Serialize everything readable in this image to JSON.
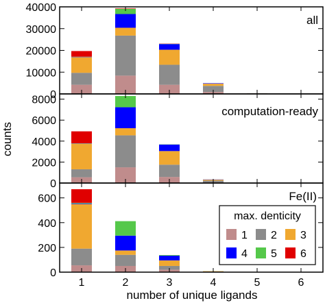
{
  "figure": {
    "ylabel": "counts",
    "xlabel": "number of unique ligands"
  },
  "colors": {
    "1": "#c08c8c",
    "2": "#8c8c8c",
    "3": "#f0a830",
    "4": "#0000ff",
    "5": "#55c84a",
    "6": "#e00000"
  },
  "chart_data": [
    {
      "type": "bar",
      "stacked": true,
      "panel_label": "all",
      "categories": [
        "1",
        "2",
        "3",
        "4",
        "5",
        "6"
      ],
      "ylim": [
        0,
        40000
      ],
      "yticks": [
        "0",
        "10000",
        "20000",
        "30000",
        "40000"
      ],
      "series": [
        {
          "key": "1",
          "values": [
            4200,
            8400,
            4200,
            900,
            80,
            10
          ]
        },
        {
          "key": "2",
          "values": [
            5500,
            18400,
            9200,
            2800,
            150,
            20
          ]
        },
        {
          "key": "3",
          "values": [
            7200,
            3600,
            6900,
            1000,
            40,
            10
          ]
        },
        {
          "key": "4",
          "values": [
            100,
            6300,
            2600,
            200,
            10,
            0
          ]
        },
        {
          "key": "5",
          "values": [
            100,
            2400,
            100,
            0,
            0,
            0
          ]
        },
        {
          "key": "6",
          "values": [
            2600,
            200,
            100,
            0,
            0,
            0
          ]
        }
      ]
    },
    {
      "type": "bar",
      "stacked": true,
      "panel_label": "computation-ready",
      "categories": [
        "1",
        "2",
        "3",
        "4",
        "5",
        "6"
      ],
      "ylim": [
        0,
        8500
      ],
      "yticks": [
        "0",
        "2000",
        "4000",
        "6000",
        "8000"
      ],
      "series": [
        {
          "key": "1",
          "values": [
            550,
            1500,
            580,
            60,
            0,
            0
          ]
        },
        {
          "key": "2",
          "values": [
            760,
            3050,
            1170,
            170,
            0,
            0
          ]
        },
        {
          "key": "3",
          "values": [
            2440,
            680,
            1300,
            90,
            0,
            0
          ]
        },
        {
          "key": "4",
          "values": [
            20,
            2000,
            620,
            20,
            0,
            0
          ]
        },
        {
          "key": "5",
          "values": [
            20,
            1070,
            20,
            0,
            0,
            0
          ]
        },
        {
          "key": "6",
          "values": [
            1140,
            0,
            0,
            0,
            0,
            0
          ]
        }
      ]
    },
    {
      "type": "bar",
      "stacked": true,
      "panel_label": "Fe(II)",
      "categories": [
        "1",
        "2",
        "3",
        "4",
        "5",
        "6"
      ],
      "ylim": [
        0,
        720
      ],
      "yticks": [
        "0",
        "200",
        "400",
        "600"
      ],
      "series": [
        {
          "key": "1",
          "values": [
            55,
            50,
            20,
            2,
            0,
            0
          ]
        },
        {
          "key": "2",
          "values": [
            135,
            90,
            30,
            3,
            0,
            0
          ]
        },
        {
          "key": "3",
          "values": [
            360,
            35,
            45,
            3,
            0,
            0
          ]
        },
        {
          "key": "4",
          "values": [
            5,
            120,
            38,
            0,
            0,
            0
          ]
        },
        {
          "key": "5",
          "values": [
            5,
            117,
            5,
            0,
            0,
            0
          ]
        },
        {
          "key": "6",
          "values": [
            110,
            0,
            0,
            0,
            0,
            0
          ]
        }
      ]
    }
  ],
  "legend": {
    "title": "max. denticity",
    "items": [
      {
        "key": "1",
        "label": "1"
      },
      {
        "key": "2",
        "label": "2"
      },
      {
        "key": "3",
        "label": "3"
      },
      {
        "key": "4",
        "label": "4"
      },
      {
        "key": "5",
        "label": "5"
      },
      {
        "key": "6",
        "label": "6"
      }
    ]
  }
}
